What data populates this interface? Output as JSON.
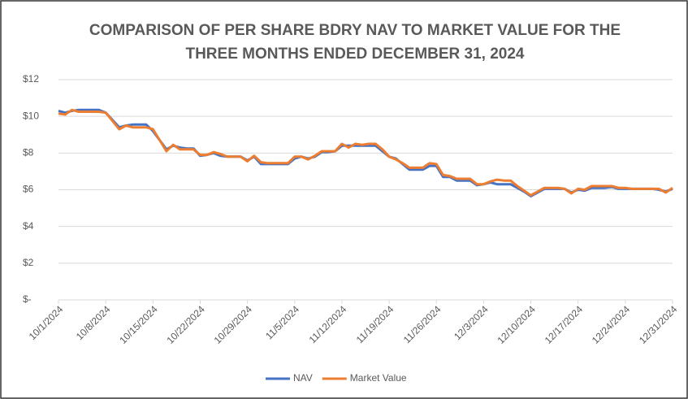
{
  "chart_data": {
    "type": "line",
    "title": [
      "COMPARISON OF PER SHARE BDRY NAV TO MARKET VALUE FOR THE",
      "THREE MONTHS ENDED DECEMBER 31, 2024"
    ],
    "categories": [
      "10/1/2024",
      null,
      null,
      null,
      null,
      null,
      null,
      "10/8/2024",
      null,
      null,
      null,
      null,
      null,
      null,
      "10/15/2024",
      null,
      null,
      null,
      null,
      null,
      null,
      "10/22/2024",
      null,
      null,
      null,
      null,
      null,
      null,
      "10/29/2024",
      null,
      null,
      null,
      null,
      null,
      null,
      "11/5/2024",
      null,
      null,
      null,
      null,
      null,
      null,
      "11/12/2024",
      null,
      null,
      null,
      null,
      null,
      null,
      "11/19/2024",
      null,
      null,
      null,
      null,
      null,
      null,
      "11/26/2024",
      null,
      null,
      null,
      null,
      null,
      null,
      "12/3/2024",
      null,
      null,
      null,
      null,
      null,
      null,
      "12/10/2024",
      null,
      null,
      null,
      null,
      null,
      null,
      "12/17/2024",
      null,
      null,
      null,
      null,
      null,
      null,
      "12/24/2024",
      null,
      null,
      null,
      null,
      null,
      null,
      "12/31/2024"
    ],
    "series": [
      {
        "name": "NAV",
        "color": "#4472c4",
        "values": [
          10.3,
          10.2,
          10.3,
          10.35,
          10.35,
          10.35,
          10.35,
          10.2,
          9.8,
          9.4,
          9.5,
          9.55,
          9.55,
          9.55,
          9.2,
          8.7,
          8.2,
          8.4,
          8.3,
          8.25,
          8.25,
          7.85,
          7.9,
          8.0,
          7.85,
          7.8,
          7.8,
          7.8,
          7.6,
          7.8,
          7.4,
          7.4,
          7.4,
          7.4,
          7.4,
          7.7,
          7.8,
          7.7,
          7.8,
          8.05,
          8.05,
          8.1,
          8.4,
          8.4,
          8.4,
          8.4,
          8.4,
          8.4,
          8.1,
          7.8,
          7.7,
          7.4,
          7.1,
          7.1,
          7.1,
          7.3,
          7.3,
          6.7,
          6.7,
          6.5,
          6.5,
          6.5,
          6.25,
          6.3,
          6.4,
          6.3,
          6.3,
          6.3,
          6.1,
          5.9,
          5.65,
          5.85,
          6.05,
          6.05,
          6.05,
          6.05,
          5.85,
          6.0,
          5.95,
          6.1,
          6.1,
          6.1,
          6.15,
          6.05,
          6.05,
          6.05,
          6.05,
          6.05,
          6.05,
          6.0,
          5.9,
          6.05
        ]
      },
      {
        "name": "Market Value",
        "color": "#ed7d31",
        "values": [
          10.15,
          10.1,
          10.35,
          10.25,
          10.25,
          10.25,
          10.25,
          10.2,
          9.75,
          9.3,
          9.5,
          9.4,
          9.4,
          9.4,
          9.3,
          8.7,
          8.1,
          8.45,
          8.2,
          8.2,
          8.2,
          7.9,
          7.9,
          8.05,
          7.95,
          7.8,
          7.8,
          7.8,
          7.55,
          7.85,
          7.5,
          7.45,
          7.45,
          7.45,
          7.45,
          7.8,
          7.8,
          7.65,
          7.85,
          8.1,
          8.1,
          8.1,
          8.5,
          8.3,
          8.5,
          8.45,
          8.5,
          8.5,
          8.2,
          7.8,
          7.65,
          7.45,
          7.2,
          7.2,
          7.2,
          7.45,
          7.4,
          6.8,
          6.75,
          6.6,
          6.6,
          6.6,
          6.3,
          6.3,
          6.45,
          6.55,
          6.5,
          6.5,
          6.2,
          5.95,
          5.7,
          5.9,
          6.1,
          6.1,
          6.1,
          6.05,
          5.8,
          6.05,
          6.0,
          6.2,
          6.2,
          6.2,
          6.2,
          6.1,
          6.1,
          6.05,
          6.05,
          6.05,
          6.05,
          6.05,
          5.85,
          6.1
        ]
      }
    ],
    "ylim": [
      0,
      12
    ],
    "yticks": [
      {
        "value": 0,
        "label": "$-"
      },
      {
        "value": 2,
        "label": "$2"
      },
      {
        "value": 4,
        "label": "$4"
      },
      {
        "value": 6,
        "label": "$6"
      },
      {
        "value": 8,
        "label": "$8"
      },
      {
        "value": 10,
        "label": "$10"
      },
      {
        "value": 12,
        "label": "$12"
      }
    ],
    "grid": true,
    "legend": "bottom"
  }
}
